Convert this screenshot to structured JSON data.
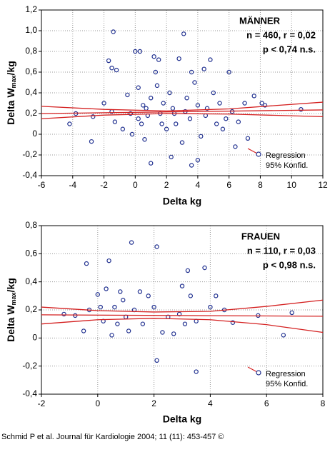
{
  "chart_data": [
    {
      "type": "scatter",
      "x_label": "Delta kg",
      "y_label": {
        "main": "Delta W",
        "sub": "max",
        "tail": "/kg"
      },
      "annotations": [
        "MÄNNER",
        "n = 460, r = 0,02",
        "p < 0,74  n.s."
      ],
      "xlim": [
        -6,
        12
      ],
      "xticks": [
        -6,
        -4,
        -2,
        0,
        2,
        4,
        6,
        8,
        10,
        12
      ],
      "ylim": [
        -0.4,
        1.2
      ],
      "yticks": [
        {
          "value": -0.4,
          "label": "-0,4"
        },
        {
          "value": -0.2,
          "label": "-0,2"
        },
        0,
        {
          "value": 0.2,
          "label": "0,2"
        },
        {
          "value": 0.4,
          "label": "0,4"
        },
        {
          "value": 0.6,
          "label": "0,6"
        },
        {
          "value": 0.8,
          "label": "0,8"
        },
        {
          "value": 1.0,
          "label": "1,0"
        },
        {
          "value": 1.2,
          "label": "1,2"
        }
      ],
      "grid": true,
      "point_color": "#1f2f8f",
      "x": [
        -4.2,
        -3.8,
        -2.8,
        -2.7,
        -2,
        -1.7,
        -1.5,
        -1.4,
        -1.2,
        -1.5,
        -1.3,
        -0.8,
        -0.5,
        -0.3,
        0,
        0.2,
        0.3,
        0.4,
        0.5,
        0.6,
        0.8,
        1,
        1.2,
        1.3,
        1.4,
        1.5,
        1.6,
        1.8,
        2,
        2.2,
        2.4,
        2.6,
        2.8,
        3,
        3.1,
        3.3,
        3.5,
        3.6,
        3.8,
        4,
        4.2,
        4.4,
        4.6,
        4.8,
        5,
        5.2,
        5.4,
        5.6,
        6,
        6.2,
        6.4,
        6.6,
        7,
        7.2,
        7.6,
        8.1,
        8.3,
        10.6,
        1,
        3.6,
        2.3,
        4,
        0.2,
        1.7,
        2.5,
        3.2,
        0.7,
        -0.2,
        5.8,
        4.5
      ],
      "y": [
        0.1,
        0.2,
        -0.07,
        0.17,
        0.3,
        0.71,
        0.64,
        0.99,
        0.62,
        0.22,
        0.12,
        0.05,
        0.38,
        0.2,
        0.8,
        0.45,
        0.8,
        0.1,
        0.28,
        -0.05,
        0.18,
        0.35,
        0.75,
        0.6,
        0.47,
        0.72,
        0.2,
        0.3,
        0.05,
        0.4,
        0.25,
        0.1,
        0.73,
        -0.08,
        0.97,
        0.35,
        0.15,
        0.6,
        0.5,
        0.28,
        -0.02,
        0.63,
        0.25,
        0.72,
        0.4,
        0.1,
        0.3,
        0.05,
        0.6,
        0.22,
        -0.12,
        0.12,
        0.3,
        -0.04,
        0.37,
        0.3,
        0.28,
        0.24,
        -0.28,
        -0.3,
        -0.22,
        -0.25,
        0.15,
        0.1,
        0.2,
        0.22,
        0.25,
        0,
        0.15,
        0.18
      ],
      "regression": {
        "name": "Regression",
        "color": "#d42020",
        "x": [
          -6,
          12
        ],
        "values": [
          0.2,
          0.235
        ]
      },
      "confidence": {
        "name": "95% Konfid.",
        "color": "#d42020",
        "x": [
          -6,
          -2,
          2,
          6,
          12
        ],
        "upper": [
          0.27,
          0.24,
          0.225,
          0.245,
          0.31
        ],
        "lower": [
          0.15,
          0.185,
          0.2,
          0.195,
          0.17
        ]
      }
    },
    {
      "type": "scatter",
      "x_label": "Delta kg",
      "y_label": {
        "main": "Delta W",
        "sub": "max",
        "tail": "/kg"
      },
      "annotations": [
        "FRAUEN",
        "n = 110, r = 0,03",
        "p < 0,98  n.s."
      ],
      "xlim": [
        -2,
        8
      ],
      "xticks": [
        -2,
        0,
        2,
        4,
        6,
        8
      ],
      "ylim": [
        -0.4,
        0.8
      ],
      "yticks": [
        {
          "value": -0.4,
          "label": "-0,4"
        },
        {
          "value": -0.2,
          "label": "-0,2"
        },
        0,
        {
          "value": 0.2,
          "label": "0,2"
        },
        {
          "value": 0.4,
          "label": "0,4"
        },
        {
          "value": 0.6,
          "label": "0,6"
        },
        {
          "value": 0.8,
          "label": "0,8"
        }
      ],
      "grid": true,
      "point_color": "#1f2f8f",
      "x": [
        -1.2,
        -0.5,
        -0.4,
        -0.3,
        0,
        0.1,
        0.2,
        0.3,
        0.4,
        0.5,
        0.7,
        0.8,
        0.9,
        1,
        1.1,
        1.2,
        1.3,
        1.5,
        1.6,
        1.8,
        2,
        2.1,
        2.1,
        2.3,
        2.5,
        2.7,
        3,
        3.1,
        3.2,
        3.3,
        3.5,
        3.5,
        3.8,
        4,
        4.2,
        4.5,
        4.8,
        5.7,
        6.6,
        6.9,
        -0.8,
        0.6,
        2.9
      ],
      "y": [
        0.17,
        0.05,
        0.53,
        0.2,
        0.31,
        0.22,
        0.12,
        0.35,
        0.55,
        0.02,
        0.1,
        0.33,
        0.27,
        0.15,
        0.05,
        0.68,
        0.2,
        0.33,
        0.1,
        0.3,
        0.22,
        0.65,
        -0.16,
        0.04,
        0.15,
        0.03,
        0.37,
        0.1,
        0.48,
        0.3,
        0.12,
        -0.24,
        0.5,
        0.22,
        0.3,
        0.2,
        0.11,
        0.16,
        0.02,
        0.18,
        0.16,
        0.22,
        0.17
      ],
      "regression": {
        "name": "Regression",
        "color": "#d42020",
        "x": [
          -2,
          8
        ],
        "values": [
          0.165,
          0.155
        ]
      },
      "confidence": {
        "name": "95% Konfid.",
        "color": "#d42020",
        "x": [
          -2,
          0,
          2,
          4,
          6,
          8
        ],
        "upper": [
          0.22,
          0.195,
          0.185,
          0.19,
          0.225,
          0.27
        ],
        "lower": [
          0.1,
          0.13,
          0.14,
          0.13,
          0.095,
          0.04
        ]
      }
    }
  ],
  "source": "Schmid P et al. Journal für Kardiologie 2004; 11 (11): 453-457 ©"
}
